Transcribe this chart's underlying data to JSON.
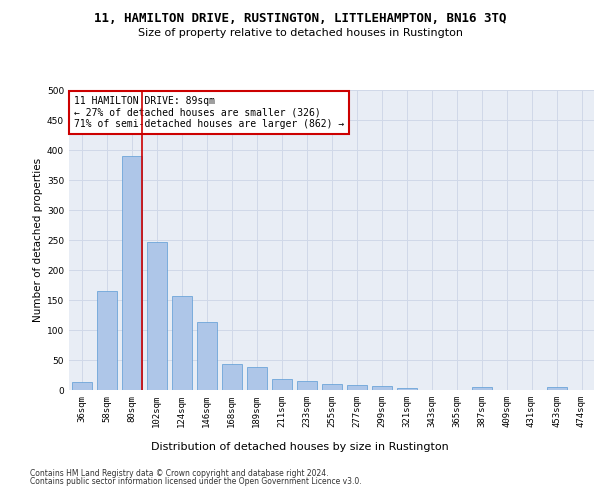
{
  "title_line1": "11, HAMILTON DRIVE, RUSTINGTON, LITTLEHAMPTON, BN16 3TQ",
  "title_line2": "Size of property relative to detached houses in Rustington",
  "xlabel": "Distribution of detached houses by size in Rustington",
  "ylabel": "Number of detached properties",
  "categories": [
    "36sqm",
    "58sqm",
    "80sqm",
    "102sqm",
    "124sqm",
    "146sqm",
    "168sqm",
    "189sqm",
    "211sqm",
    "233sqm",
    "255sqm",
    "277sqm",
    "299sqm",
    "321sqm",
    "343sqm",
    "365sqm",
    "387sqm",
    "409sqm",
    "431sqm",
    "453sqm",
    "474sqm"
  ],
  "values": [
    13,
    165,
    390,
    247,
    157,
    113,
    43,
    39,
    19,
    15,
    10,
    9,
    6,
    4,
    0,
    0,
    5,
    0,
    0,
    5,
    0
  ],
  "bar_color": "#aec6e8",
  "bar_edge_color": "#5b9bd5",
  "highlight_bar_index": 2,
  "highlight_line_color": "#cc0000",
  "annotation_text": "11 HAMILTON DRIVE: 89sqm\n← 27% of detached houses are smaller (326)\n71% of semi-detached houses are larger (862) →",
  "annotation_box_color": "#ffffff",
  "annotation_box_edge_color": "#cc0000",
  "ylim": [
    0,
    500
  ],
  "yticks": [
    0,
    50,
    100,
    150,
    200,
    250,
    300,
    350,
    400,
    450,
    500
  ],
  "grid_color": "#d0d8e8",
  "background_color": "#e8edf5",
  "footer_line1": "Contains HM Land Registry data © Crown copyright and database right 2024.",
  "footer_line2": "Contains public sector information licensed under the Open Government Licence v3.0.",
  "title_fontsize": 9,
  "subtitle_fontsize": 8,
  "axis_label_fontsize": 7.5,
  "tick_fontsize": 6.5,
  "annotation_fontsize": 7,
  "footer_fontsize": 5.5
}
